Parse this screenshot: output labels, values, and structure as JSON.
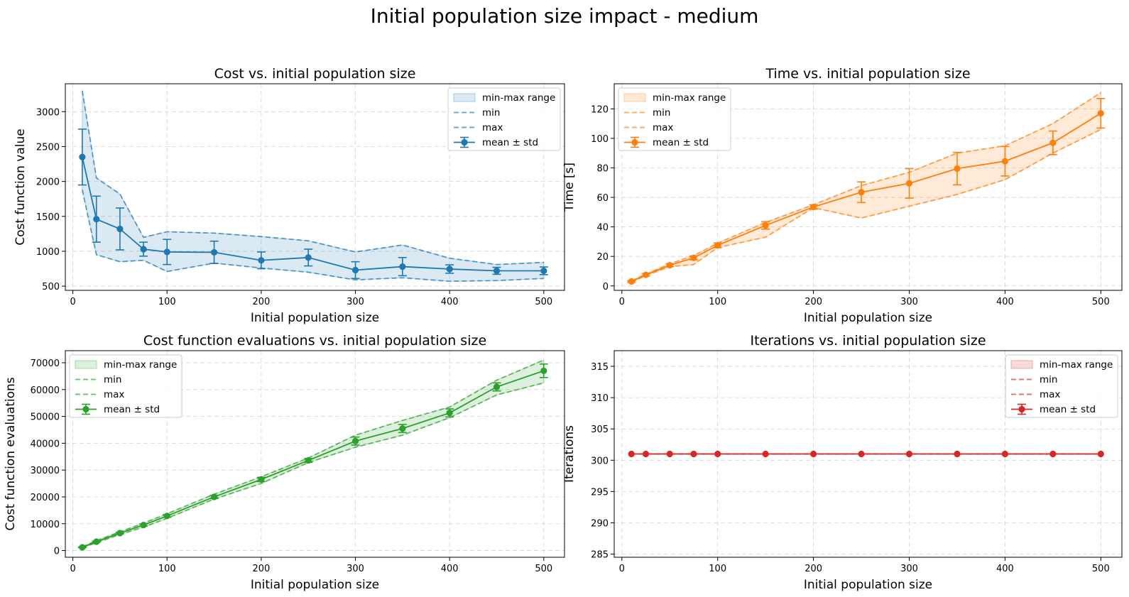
{
  "figure": {
    "title": "Initial population size impact - medium"
  },
  "chart_data": [
    {
      "type": "line",
      "title": "Cost vs. initial population size",
      "xlabel": "Initial population size",
      "ylabel": "Cost function value",
      "color": "#1f77b4",
      "xlim": [
        -8,
        522
      ],
      "ylim": [
        440,
        3400
      ],
      "xticks": [
        0,
        100,
        200,
        300,
        400,
        500
      ],
      "yticks": [
        500,
        1000,
        1500,
        2000,
        2500,
        3000
      ],
      "legend_position": "upper right",
      "legend": [
        "min-max range",
        "min",
        "max",
        "mean ± std"
      ],
      "x": [
        10,
        25,
        50,
        75,
        100,
        150,
        200,
        250,
        300,
        350,
        400,
        450,
        500
      ],
      "mean": [
        2350,
        1460,
        1320,
        1030,
        990,
        985,
        870,
        910,
        730,
        780,
        745,
        720,
        720
      ],
      "std": [
        400,
        330,
        300,
        100,
        180,
        160,
        120,
        120,
        120,
        130,
        60,
        50,
        55
      ],
      "min": [
        1880,
        950,
        850,
        870,
        710,
        830,
        760,
        700,
        590,
        620,
        570,
        580,
        610
      ],
      "max": [
        3300,
        2050,
        1820,
        1200,
        1280,
        1260,
        1210,
        1150,
        990,
        1090,
        900,
        810,
        840
      ]
    },
    {
      "type": "line",
      "title": "Time vs. initial population size",
      "xlabel": "Initial population size",
      "ylabel": "Time [s]",
      "color": "#ff7f0e",
      "xlim": [
        -8,
        522
      ],
      "ylim": [
        -3,
        137
      ],
      "xticks": [
        0,
        100,
        200,
        300,
        400,
        500
      ],
      "yticks": [
        0,
        20,
        40,
        60,
        80,
        100,
        120
      ],
      "legend_position": "upper left",
      "legend": [
        "min-max range",
        "min",
        "max",
        "mean ± std"
      ],
      "x": [
        10,
        25,
        50,
        75,
        100,
        150,
        200,
        250,
        300,
        350,
        400,
        450,
        500
      ],
      "mean": [
        3,
        7.5,
        14,
        19,
        27.5,
        41,
        53.5,
        63.5,
        69.5,
        79.5,
        84.5,
        97,
        117
      ],
      "std": [
        0.5,
        0.8,
        1,
        1.3,
        1.6,
        2.5,
        1.5,
        7,
        10,
        11,
        10,
        8,
        10
      ],
      "min": [
        2.5,
        7,
        13,
        14.5,
        26,
        33,
        53,
        46,
        54,
        62,
        72,
        90,
        106
      ],
      "max": [
        3.5,
        8,
        15,
        20.5,
        29,
        43,
        55,
        68,
        77,
        90,
        95,
        110,
        131
      ]
    },
    {
      "type": "line",
      "title": "Cost function evaluations vs. initial population size",
      "xlabel": "Initial population size",
      "ylabel": "Cost function evaluations",
      "color": "#2ca02c",
      "xlim": [
        -8,
        522
      ],
      "ylim": [
        -2500,
        74500
      ],
      "xticks": [
        0,
        100,
        200,
        300,
        400,
        500
      ],
      "yticks": [
        0,
        10000,
        20000,
        30000,
        40000,
        50000,
        60000,
        70000
      ],
      "legend_position": "upper left",
      "legend": [
        "min-max range",
        "min",
        "max",
        "mean ± std"
      ],
      "x": [
        10,
        25,
        50,
        75,
        100,
        150,
        200,
        250,
        300,
        350,
        400,
        450,
        500
      ],
      "mean": [
        1200,
        3300,
        6500,
        9500,
        12900,
        20000,
        26500,
        33600,
        40800,
        45500,
        51300,
        61000,
        67000
      ],
      "std": [
        150,
        250,
        300,
        400,
        500,
        600,
        800,
        700,
        1500,
        1500,
        1500,
        1500,
        2500
      ],
      "min": [
        1000,
        2900,
        6000,
        8700,
        12000,
        19200,
        25000,
        32800,
        38500,
        43000,
        49500,
        58000,
        62500
      ],
      "max": [
        1400,
        3700,
        7000,
        10200,
        13700,
        21000,
        27500,
        34500,
        43000,
        48500,
        53500,
        63500,
        71000
      ]
    },
    {
      "type": "line",
      "title": "Iterations vs. initial population size",
      "xlabel": "Initial population size",
      "ylabel": "Iterations",
      "color": "#d62728",
      "xlim": [
        -8,
        522
      ],
      "ylim": [
        284.5,
        317.5
      ],
      "xticks": [
        0,
        100,
        200,
        300,
        400,
        500
      ],
      "yticks": [
        285,
        290,
        295,
        300,
        305,
        310,
        315
      ],
      "legend_position": "upper right",
      "legend": [
        "min-max range",
        "min",
        "max",
        "mean ± std"
      ],
      "x": [
        10,
        25,
        50,
        75,
        100,
        150,
        200,
        250,
        300,
        350,
        400,
        450,
        500
      ],
      "mean": [
        301,
        301,
        301,
        301,
        301,
        301,
        301,
        301,
        301,
        301,
        301,
        301,
        301
      ],
      "std": [
        0,
        0,
        0,
        0,
        0,
        0,
        0,
        0,
        0,
        0,
        0,
        0,
        0
      ],
      "min": [
        301,
        301,
        301,
        301,
        301,
        301,
        301,
        301,
        301,
        301,
        301,
        301,
        301
      ],
      "max": [
        301,
        301,
        301,
        301,
        301,
        301,
        301,
        301,
        301,
        301,
        301,
        301,
        301
      ]
    }
  ]
}
